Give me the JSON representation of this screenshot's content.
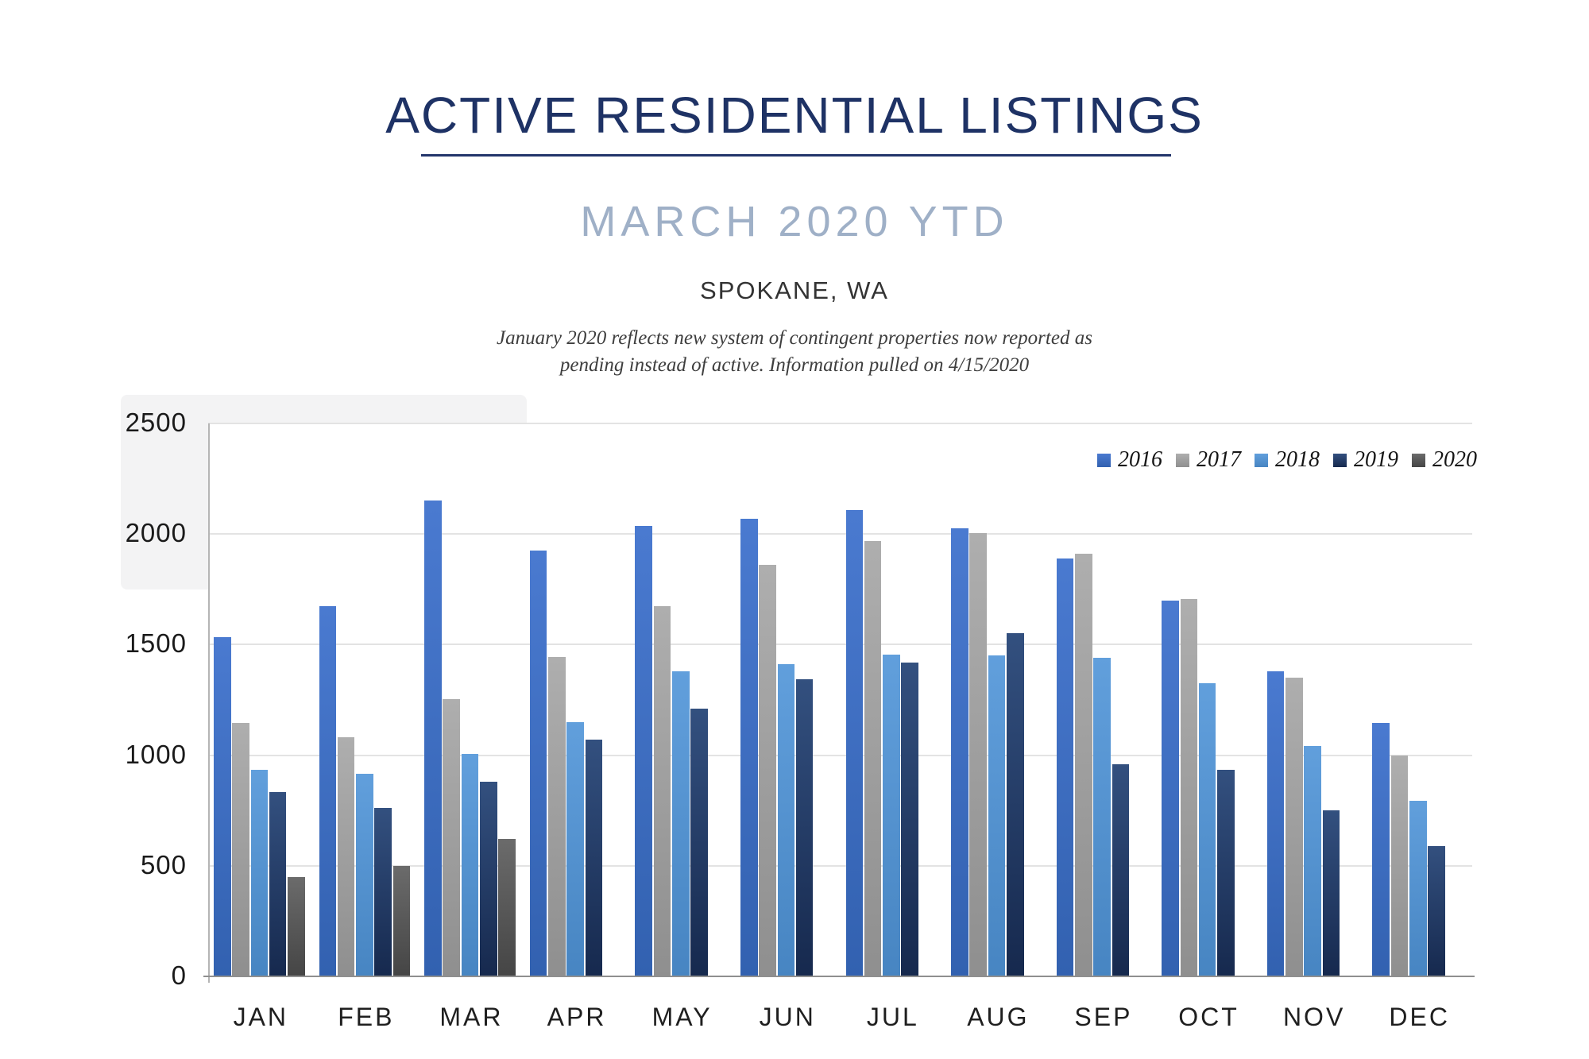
{
  "page": {
    "title": "ACTIVE RESIDENTIAL LISTINGS",
    "subtitle": "MARCH 2020 YTD",
    "location": "SPOKANE, WA",
    "note_line1": "January 2020 reflects new system of contingent properties now reported as",
    "note_line2": "pending instead of active.  Information pulled on 4/15/2020"
  },
  "colors": {
    "title": "#1e3265",
    "subtitle": "#9fb0c7",
    "gridline": "#e3e3e3",
    "y_axis_line": "#b5b5b5",
    "x_axis_line": "#8f8f8f",
    "tick_label": "#1a1a1a",
    "month_label": "#1f1f1f"
  },
  "chart_data": {
    "type": "bar",
    "title": "ACTIVE RESIDENTIAL LISTINGS",
    "subtitle": "MARCH 2020 YTD",
    "region": "SPOKANE, WA",
    "categories": [
      "JAN",
      "FEB",
      "MAR",
      "APR",
      "MAY",
      "JUN",
      "JUL",
      "AUG",
      "SEP",
      "OCT",
      "NOV",
      "DEC"
    ],
    "series": [
      {
        "name": "2016",
        "color": "#4472C4",
        "gradient": [
          "#4a7ad0",
          "#3261b0"
        ],
        "values": [
          1535,
          1675,
          2150,
          1925,
          2035,
          2070,
          2110,
          2025,
          1890,
          1700,
          1380,
          1145
        ]
      },
      {
        "name": "2017",
        "color": "#A6A6A6",
        "gradient": [
          "#aeaeae",
          "#8f8f8f"
        ],
        "values": [
          1145,
          1080,
          1255,
          1445,
          1675,
          1860,
          1970,
          2005,
          1910,
          1705,
          1350,
          1000
        ]
      },
      {
        "name": "2018",
        "color": "#5B9BD5",
        "gradient": [
          "#619fdc",
          "#4785c2"
        ],
        "values": [
          935,
          915,
          1005,
          1150,
          1380,
          1410,
          1455,
          1450,
          1440,
          1325,
          1040,
          795
        ]
      },
      {
        "name": "2019",
        "color": "#1F3864",
        "gradient": [
          "#33507f",
          "#16294e"
        ],
        "values": [
          835,
          760,
          880,
          1070,
          1210,
          1345,
          1420,
          1550,
          960,
          935,
          750,
          590
        ]
      },
      {
        "name": "2020",
        "color": "#595959",
        "gradient": [
          "#6b6b6b",
          "#454545"
        ],
        "values": [
          450,
          500,
          620,
          null,
          null,
          null,
          null,
          null,
          null,
          null,
          null,
          null
        ]
      }
    ],
    "ylim": [
      0,
      2500
    ],
    "yticks": [
      0,
      500,
      1000,
      1500,
      2000,
      2500
    ],
    "grid": true,
    "legend_position": "top-right"
  }
}
